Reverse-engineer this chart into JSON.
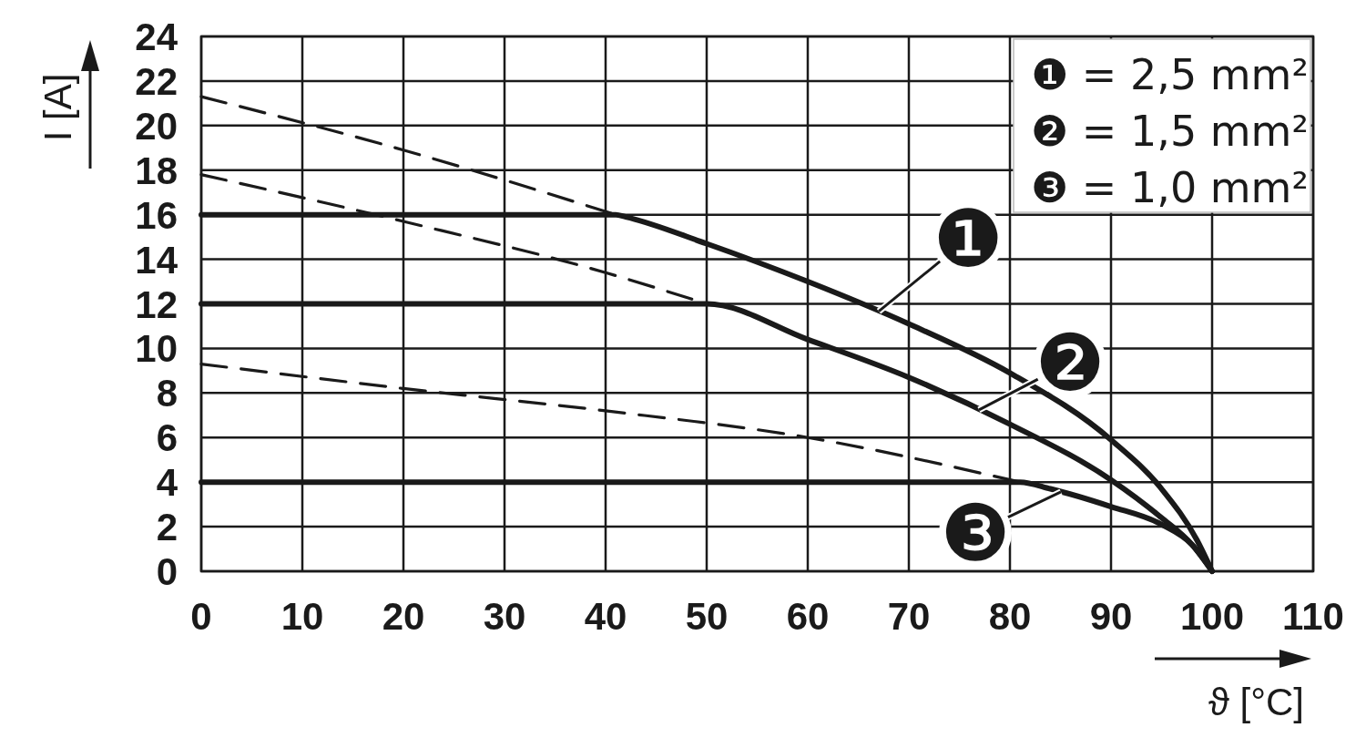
{
  "chart_data": {
    "type": "line",
    "xlabel": "ϑ [°C]",
    "ylabel": "I [A]",
    "xlim": [
      0,
      110
    ],
    "xticks": [
      0,
      10,
      20,
      30,
      40,
      50,
      60,
      70,
      80,
      90,
      100,
      110
    ],
    "ylim": [
      0,
      24
    ],
    "yticks": [
      0,
      2,
      4,
      6,
      8,
      10,
      12,
      14,
      16,
      18,
      20,
      22,
      24
    ],
    "grid": true,
    "marker": "none",
    "series": [
      {
        "name": "❶",
        "color": "#1a1a1a",
        "line_style": "solid",
        "x": [
          0,
          41,
          42,
          50,
          60,
          70,
          80,
          90,
          95,
          98.5,
          100
        ],
        "values": [
          16,
          16,
          15.9,
          14.7,
          13.0,
          11.1,
          8.9,
          5.9,
          3.7,
          1.4,
          0
        ]
      },
      {
        "name": "❷",
        "color": "#1a1a1a",
        "line_style": "solid",
        "x": [
          0,
          50,
          60,
          70,
          80,
          90,
          95,
          98,
          100
        ],
        "values": [
          12,
          12,
          10.4,
          8.7,
          6.6,
          4.1,
          2.4,
          1.2,
          0
        ]
      },
      {
        "name": "❸",
        "color": "#1a1a1a",
        "line_style": "solid",
        "x": [
          0,
          81,
          84,
          90,
          95,
          98,
          100
        ],
        "values": [
          4,
          4,
          3.7,
          2.9,
          2.1,
          1.2,
          0
        ]
      },
      {
        "color": "#1a1a1a",
        "line_style": "dashed",
        "x": [
          0,
          20,
          41
        ],
        "values": [
          21.3,
          18.9,
          16
        ]
      },
      {
        "color": "#1a1a1a",
        "line_style": "dashed",
        "x": [
          0,
          20,
          40,
          50
        ],
        "values": [
          17.8,
          15.7,
          13.4,
          12
        ]
      },
      {
        "color": "#1a1a1a",
        "line_style": "dashed",
        "x": [
          0,
          20,
          40,
          60,
          81
        ],
        "values": [
          9.3,
          8.2,
          7.2,
          6.0,
          4.0
        ]
      }
    ],
    "annotations": [
      "❶ = 2,5 mm²",
      "❷ = 1,5 mm²",
      "❸ = 1,0 mm²"
    ]
  }
}
